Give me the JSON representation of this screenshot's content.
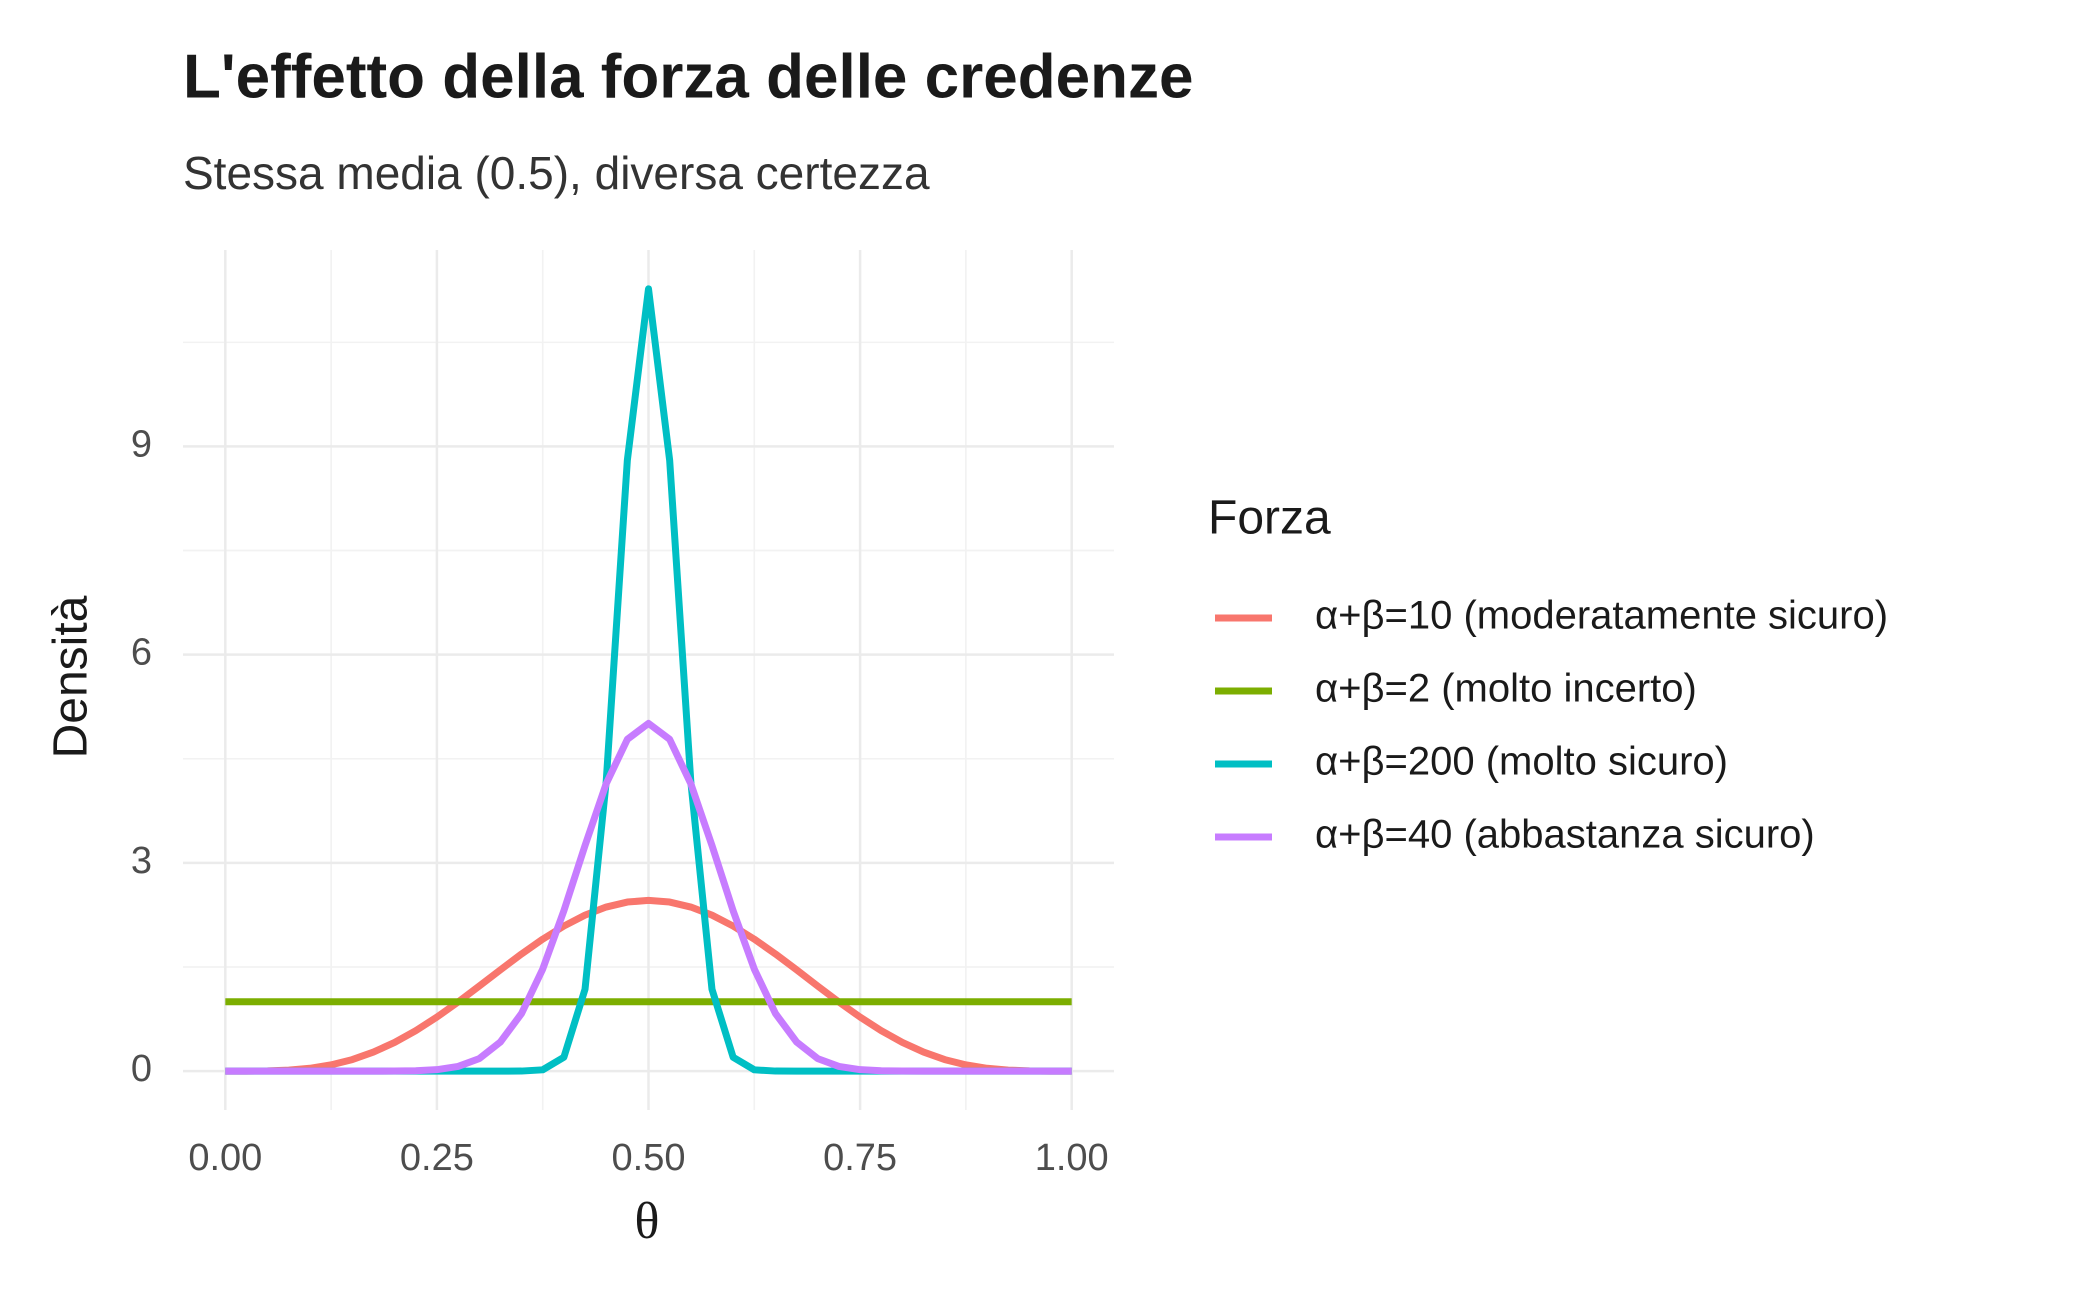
{
  "chart_data": {
    "type": "line",
    "title": "L'effetto della forza delle credenze",
    "subtitle": "Stessa media (0.5), diversa certezza",
    "x_label": "θ",
    "y_label": "Densità",
    "legend_title": "Forza",
    "legend_position": "right",
    "grid": true,
    "x": [
      0,
      0.025,
      0.05,
      0.075,
      0.1,
      0.125,
      0.15,
      0.175,
      0.2,
      0.225,
      0.25,
      0.275,
      0.3,
      0.325,
      0.35,
      0.375,
      0.4,
      0.425,
      0.45,
      0.475,
      0.5,
      0.525,
      0.55,
      0.575,
      0.6,
      0.625,
      0.65,
      0.675,
      0.7,
      0.725,
      0.75,
      0.775,
      0.8,
      0.825,
      0.85,
      0.875,
      0.9,
      0.925,
      0.95,
      0.975,
      1
    ],
    "series": [
      {
        "name": "α+β=10 (moderatamente sicuro)",
        "color": "#F8766D",
        "values": [
          0,
          0,
          0.003,
          0.015,
          0.041,
          0.09,
          0.166,
          0.274,
          0.413,
          0.583,
          0.779,
          0.995,
          1.225,
          1.459,
          1.688,
          1.901,
          2.09,
          2.247,
          2.364,
          2.436,
          2.46,
          2.436,
          2.364,
          2.247,
          2.09,
          1.901,
          1.688,
          1.459,
          1.225,
          0.995,
          0.779,
          0.583,
          0.413,
          0.274,
          0.166,
          0.09,
          0.041,
          0.015,
          0.003,
          0,
          0
        ]
      },
      {
        "name": "α+β=2 (molto incerto)",
        "color": "#7CAE00",
        "values": [
          1,
          1,
          1,
          1,
          1,
          1,
          1,
          1,
          1,
          1,
          1,
          1,
          1,
          1,
          1,
          1,
          1,
          1,
          1,
          1,
          1,
          1,
          1,
          1,
          1,
          1,
          1,
          1,
          1,
          1,
          1,
          1,
          1,
          1,
          1,
          1,
          1,
          1,
          1,
          1,
          1
        ]
      },
      {
        "name": "α+β=200 (molto sicuro)",
        "color": "#00BFC4",
        "values": [
          0,
          0,
          0,
          0,
          0,
          0,
          0,
          0,
          0,
          0,
          0,
          0,
          0,
          0,
          0.001,
          0.019,
          0.2,
          1.18,
          4.17,
          8.8,
          11.27,
          8.8,
          4.17,
          1.18,
          0.2,
          0.019,
          0.001,
          0,
          0,
          0,
          0,
          0,
          0,
          0,
          0,
          0,
          0,
          0,
          0,
          0,
          0
        ]
      },
      {
        "name": "α+β=40 (abbastanza sicuro)",
        "color": "#C77CFF",
        "values": [
          0,
          0,
          0,
          0,
          0,
          0,
          0,
          0,
          0.001,
          0.005,
          0.021,
          0.068,
          0.18,
          0.42,
          0.83,
          1.47,
          2.31,
          3.25,
          4.14,
          4.78,
          5.01,
          4.78,
          4.14,
          3.25,
          2.31,
          1.47,
          0.83,
          0.42,
          0.18,
          0.068,
          0.021,
          0.005,
          0.001,
          0,
          0,
          0,
          0,
          0,
          0,
          0,
          0
        ]
      }
    ],
    "xlim": [
      -0.05,
      1.05
    ],
    "xticks": [
      {
        "value": 0,
        "label": "0.00"
      },
      {
        "value": 0.25,
        "label": "0.25"
      },
      {
        "value": 0.5,
        "label": "0.50"
      },
      {
        "value": 0.75,
        "label": "0.75"
      },
      {
        "value": 1,
        "label": "1.00"
      }
    ],
    "ylim": [
      -0.56,
      11.83
    ],
    "yticks": [
      0,
      3,
      6,
      9
    ]
  }
}
